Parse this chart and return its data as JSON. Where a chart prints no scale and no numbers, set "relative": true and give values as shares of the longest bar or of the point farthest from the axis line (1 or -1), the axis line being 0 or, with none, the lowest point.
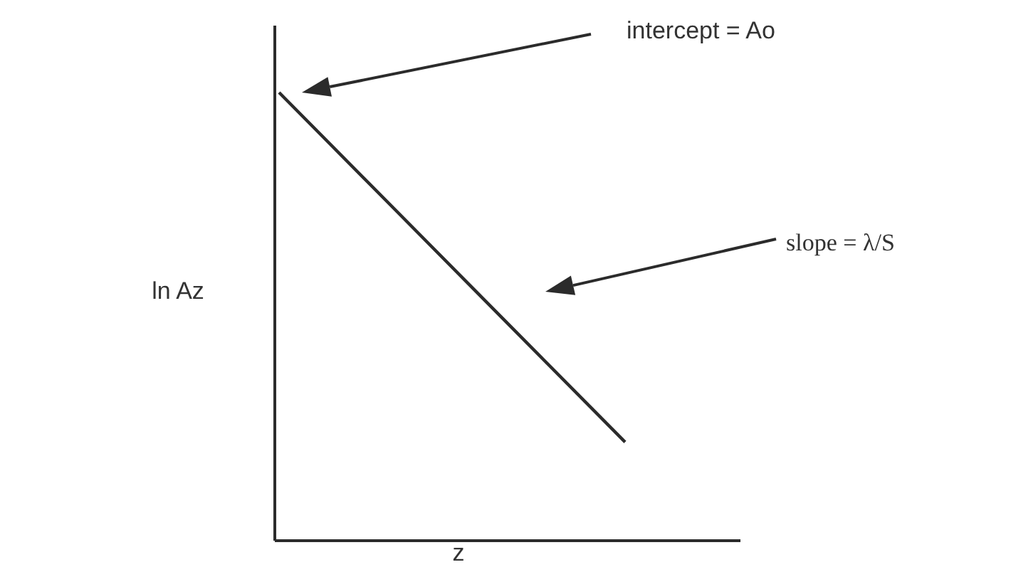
{
  "chart_data": {
    "type": "line",
    "relative": true,
    "xlabel": "z",
    "ylabel": "ln Az",
    "categories": [
      null,
      null,
      null,
      null,
      null
    ],
    "series": [
      {
        "color": "#2b2b2b",
        "values": [
          1,
          0.74,
          0.48,
          0.22,
          null
        ]
      }
    ],
    "annotations": [
      "intercept = Ao",
      "slope = λ/S"
    ],
    "line_style": "solid"
  }
}
